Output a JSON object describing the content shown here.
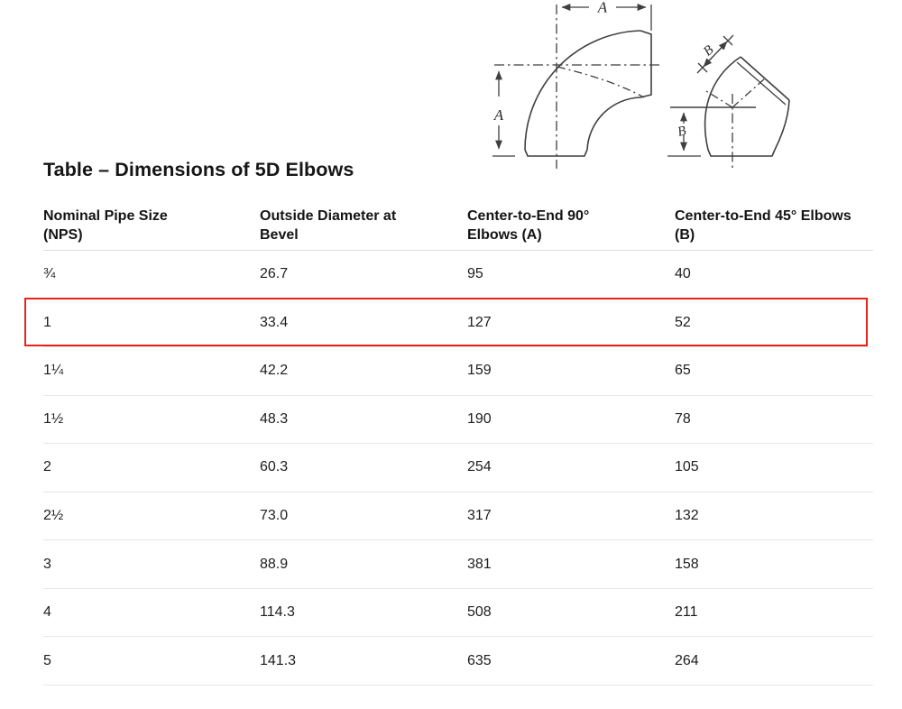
{
  "page": {
    "title": "Table – Dimensions of 5D Elbows"
  },
  "diagram": {
    "elbow90": {
      "dim_top": "A",
      "dim_left": "A"
    },
    "elbow45": {
      "dim_diagonal": "B",
      "dim_left": "B"
    }
  },
  "table": {
    "headers": [
      {
        "line1": "Nominal Pipe Size",
        "line2": "(NPS)"
      },
      {
        "line1": "Outside Diameter at",
        "line2": "Bevel"
      },
      {
        "line1": "Center-to-End 90°",
        "line2": "Elbows (A)"
      },
      {
        "line1": "Center-to-End 45° Elbows",
        "line2": "(B)"
      }
    ],
    "rows": [
      {
        "nps": "¾",
        "od": "26.7",
        "c90": "95",
        "c45": "40"
      },
      {
        "nps": "1",
        "od": "33.4",
        "c90": "127",
        "c45": "52"
      },
      {
        "nps": "1¼",
        "od": "42.2",
        "c90": "159",
        "c45": "65"
      },
      {
        "nps": "1½",
        "od": "48.3",
        "c90": "190",
        "c45": "78"
      },
      {
        "nps": "2",
        "od": "60.3",
        "c90": "254",
        "c45": "105"
      },
      {
        "nps": "2½",
        "od": "73.0",
        "c90": "317",
        "c45": "132"
      },
      {
        "nps": "3",
        "od": "88.9",
        "c90": "381",
        "c45": "158"
      },
      {
        "nps": "4",
        "od": "114.3",
        "c90": "508",
        "c45": "211"
      },
      {
        "nps": "5",
        "od": "141.3",
        "c90": "635",
        "c45": "264"
      }
    ],
    "highlight": {
      "row_index": 1,
      "color": "#e8231a"
    }
  }
}
